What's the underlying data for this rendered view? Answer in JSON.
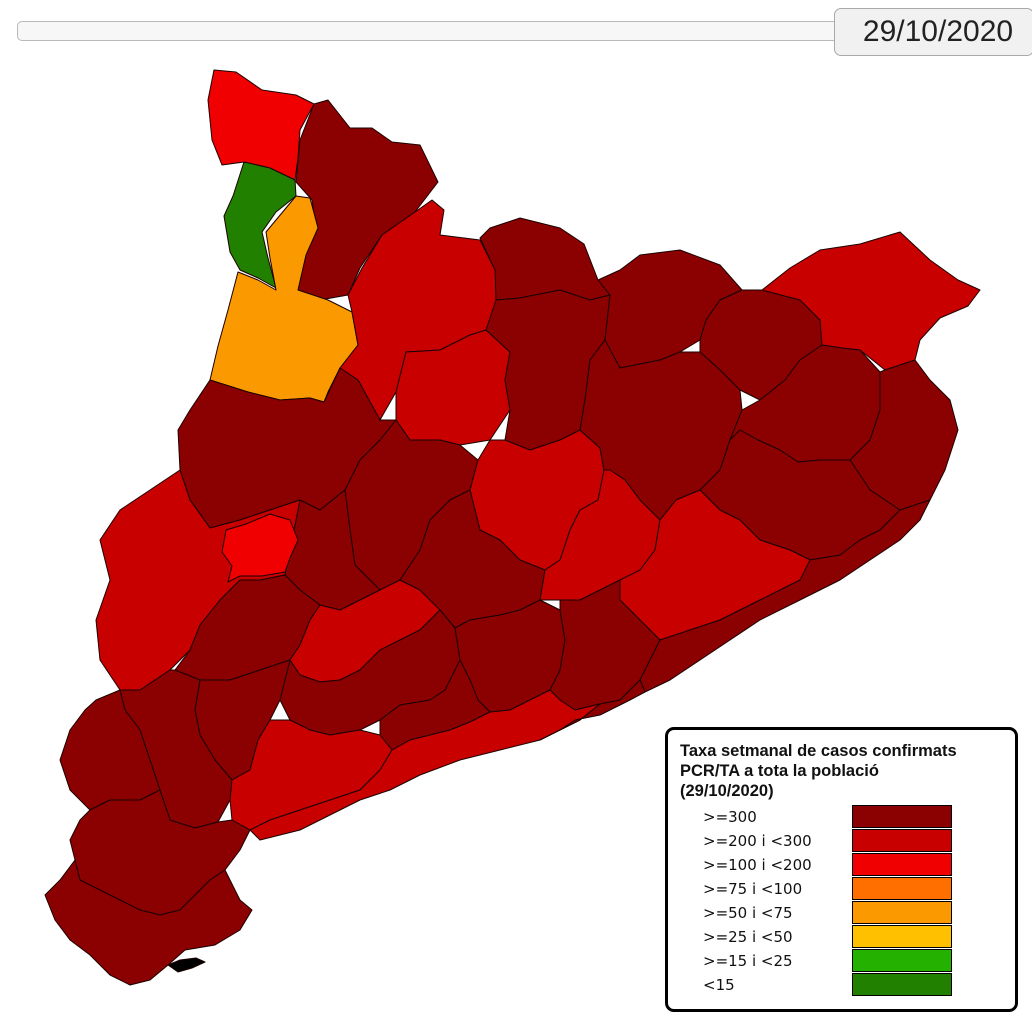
{
  "date_display": "29/10/2020",
  "legend": {
    "title_lines": [
      "Taxa setmanal de casos confirmats",
      "PCR/TA a tota la població",
      "(29/10/2020)"
    ],
    "items": [
      {
        "label": ">=300",
        "color": "#8b0000"
      },
      {
        "label": ">=200 i <300",
        "color": "#c80000"
      },
      {
        "label": ">=100 i <200",
        "color": "#f00000"
      },
      {
        "label": ">=75 i <100",
        "color": "#ff6f00"
      },
      {
        "label": ">=50 i <75",
        "color": "#fa9a00"
      },
      {
        "label": ">=25 i <50",
        "color": "#ffc000"
      },
      {
        "label": ">=15 i <25",
        "color": "#25b100"
      },
      {
        "label": "<15",
        "color": "#228000"
      }
    ]
  },
  "map": {
    "regions": [
      {
        "category": ">=100 i <200"
      },
      {
        "category": ">=300"
      },
      {
        "category": "<15"
      },
      {
        "category": ">=50 i <75"
      },
      {
        "category": ">=200 i <300"
      },
      {
        "category": ">=300"
      },
      {
        "category": ">=200 i <300"
      },
      {
        "category": ">=300"
      },
      {
        "category": ">=300"
      },
      {
        "category": ">=300"
      },
      {
        "category": ">=200 i <300"
      },
      {
        "category": ">=300"
      },
      {
        "category": ">=300"
      },
      {
        "category": ">=200 i <300"
      },
      {
        "category": ">=300"
      },
      {
        "category": ">=300"
      },
      {
        "category": ">=300"
      },
      {
        "category": ">=300"
      },
      {
        "category": ">=300"
      },
      {
        "category": ">=200 i <300"
      },
      {
        "category": ">=100 i <200"
      },
      {
        "category": ">=300"
      },
      {
        "category": ">=200 i <300"
      },
      {
        "category": ">=300"
      },
      {
        "category": ">=200 i <300"
      },
      {
        "category": ">=300"
      },
      {
        "category": ">=200 i <300"
      },
      {
        "category": ">=300"
      },
      {
        "category": ">=300"
      },
      {
        "category": ">=300"
      },
      {
        "category": ">=300"
      },
      {
        "category": ">=300"
      },
      {
        "category": ">=300"
      },
      {
        "category": ">=200 i <300"
      },
      {
        "category": ">=200 i <300"
      },
      {
        "category": ">=300"
      },
      {
        "category": ">=300"
      },
      {
        "category": ">=300"
      },
      {
        "category": ">=300"
      }
    ]
  }
}
